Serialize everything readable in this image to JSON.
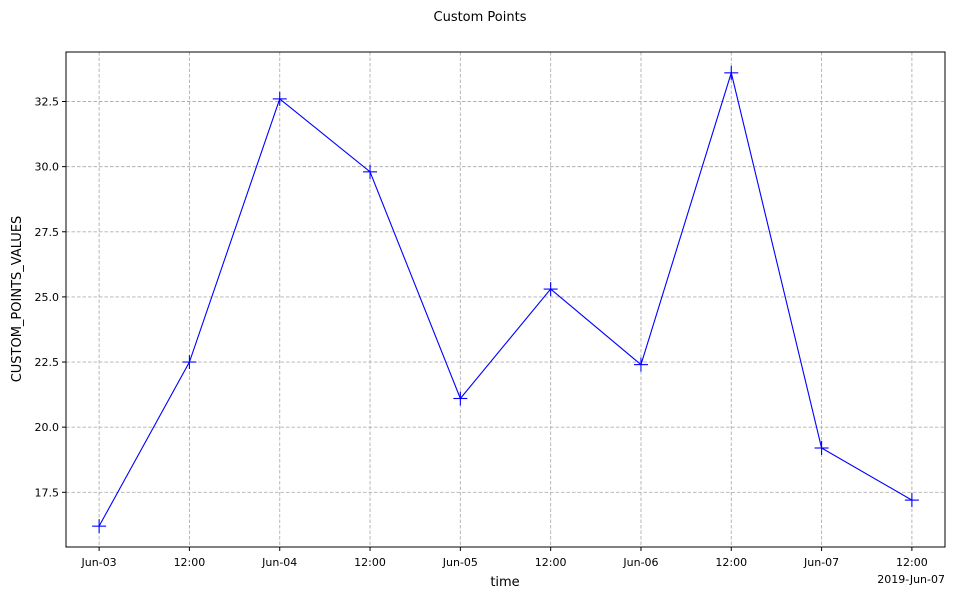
{
  "chart_data": {
    "type": "line",
    "title": "Custom Points",
    "xlabel": "time",
    "ylabel": "CUSTOM_POINTS_VALUES",
    "x": [
      "2019-06-03 00:00",
      "2019-06-03 12:00",
      "2019-06-04 00:00",
      "2019-06-04 12:00",
      "2019-06-05 00:00",
      "2019-06-05 12:00",
      "2019-06-06 00:00",
      "2019-06-06 12:00",
      "2019-06-07 00:00",
      "2019-06-07 12:00"
    ],
    "series": [
      {
        "values": [
          16.2,
          22.5,
          32.6,
          29.8,
          21.1,
          25.3,
          22.4,
          33.6,
          19.2,
          17.2
        ],
        "color": "#0000ff",
        "marker": "plus"
      }
    ],
    "xticks": [
      "Jun-03",
      "12:00",
      "Jun-04",
      "12:00",
      "Jun-05",
      "12:00",
      "Jun-06",
      "12:00",
      "Jun-07",
      "12:00"
    ],
    "x_offset_label": "2019-Jun-07",
    "yticks": [
      17.5,
      20.0,
      22.5,
      25.0,
      27.5,
      30.0,
      32.5
    ],
    "ytick_labels": [
      "17.5",
      "20.0",
      "22.5",
      "25.0",
      "27.5",
      "30.0",
      "32.5"
    ],
    "xlim": [
      "2019-06-02 19:36",
      "2019-06-07 16:24"
    ],
    "ylim": [
      15.4,
      34.4
    ],
    "grid": true,
    "grid_style": "dashed",
    "grid_color": "#b0b0b0"
  }
}
